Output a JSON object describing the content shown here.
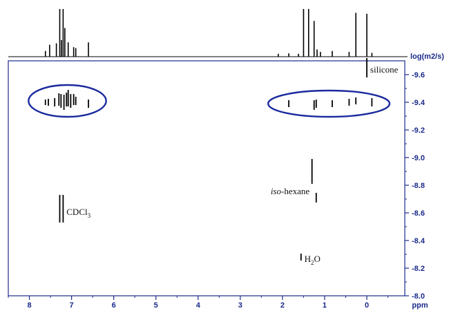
{
  "chart_data": {
    "type": "scatter",
    "subtype": "2D DOSY NMR spectrum",
    "title": "",
    "xlabel": "ppm",
    "ylabel": "log(m2/s)",
    "x_axis_reversed": true,
    "y_axis_reversed": true,
    "xlim": [
      8.5,
      -0.9
    ],
    "ylim": [
      -9.7,
      -8.0
    ],
    "x_ticks": [
      "8",
      "7",
      "6",
      "5",
      "4",
      "3",
      "2",
      "1",
      "0"
    ],
    "y_ticks": [
      "-9.6",
      "-9.4",
      "-9.2",
      "-9.0",
      "-8.8",
      "-8.6",
      "-8.4",
      "-8.2",
      "-8.0"
    ],
    "grid": false,
    "colors": {
      "axis": "#1a2a8a",
      "ellipse": "#1a2a9e",
      "signal": "#000000"
    },
    "projection_1d": [
      {
        "ppm": 7.62,
        "h": 0.12
      },
      {
        "ppm": 7.52,
        "h": 0.25
      },
      {
        "ppm": 7.36,
        "h": 0.28
      },
      {
        "ppm": 7.28,
        "h": 1.0
      },
      {
        "ppm": 7.24,
        "h": 0.35
      },
      {
        "ppm": 7.2,
        "h": 1.0
      },
      {
        "ppm": 7.16,
        "h": 0.6
      },
      {
        "ppm": 7.08,
        "h": 0.3
      },
      {
        "ppm": 6.95,
        "h": 0.2
      },
      {
        "ppm": 6.9,
        "h": 0.18
      },
      {
        "ppm": 6.6,
        "h": 0.3
      },
      {
        "ppm": 2.1,
        "h": 0.06
      },
      {
        "ppm": 1.85,
        "h": 0.07
      },
      {
        "ppm": 1.62,
        "h": 0.06
      },
      {
        "ppm": 1.5,
        "h": 1.0
      },
      {
        "ppm": 1.38,
        "h": 1.0
      },
      {
        "ppm": 1.25,
        "h": 0.75
      },
      {
        "ppm": 1.18,
        "h": 0.15
      },
      {
        "ppm": 1.1,
        "h": 0.1
      },
      {
        "ppm": 0.82,
        "h": 0.12
      },
      {
        "ppm": 0.42,
        "h": 0.1
      },
      {
        "ppm": 0.26,
        "h": 0.92
      },
      {
        "ppm": 0.0,
        "h": 0.9
      },
      {
        "ppm": -0.12,
        "h": 0.08
      }
    ],
    "series": [
      {
        "points": [
          {
            "ppm": 7.62,
            "log_d": -9.4,
            "len": 0.04
          },
          {
            "ppm": 7.55,
            "log_d": -9.4,
            "len": 0.05
          },
          {
            "ppm": 7.4,
            "log_d": -9.4,
            "len": 0.06
          },
          {
            "ppm": 7.3,
            "log_d": -9.42,
            "len": 0.09
          },
          {
            "ppm": 7.25,
            "log_d": -9.41,
            "len": 0.1
          },
          {
            "ppm": 7.18,
            "log_d": -9.4,
            "len": 0.11
          },
          {
            "ppm": 7.12,
            "log_d": -9.42,
            "len": 0.1
          },
          {
            "ppm": 7.08,
            "log_d": -9.43,
            "len": 0.12
          },
          {
            "ppm": 7.02,
            "log_d": -9.41,
            "len": 0.1
          },
          {
            "ppm": 6.95,
            "log_d": -9.42,
            "len": 0.08
          },
          {
            "ppm": 6.9,
            "log_d": -9.41,
            "len": 0.06
          },
          {
            "ppm": 6.6,
            "log_d": -9.39,
            "len": 0.06
          }
        ]
      },
      {
        "points": [
          {
            "ppm": 1.85,
            "log_d": -9.39,
            "len": 0.05
          },
          {
            "ppm": 1.25,
            "log_d": -9.38,
            "len": 0.07
          },
          {
            "ppm": 1.2,
            "log_d": -9.39,
            "len": 0.06
          },
          {
            "ppm": 0.82,
            "log_d": -9.39,
            "len": 0.05
          },
          {
            "ppm": 0.42,
            "log_d": -9.4,
            "len": 0.05
          },
          {
            "ppm": 0.26,
            "log_d": -9.41,
            "len": 0.05
          },
          {
            "ppm": -0.12,
            "log_d": -9.4,
            "len": 0.06
          }
        ]
      },
      {
        "points": [
          {
            "ppm": 1.3,
            "log_d": -8.9,
            "len": 0.18
          },
          {
            "ppm": 1.2,
            "log_d": -8.71,
            "len": 0.07
          }
        ]
      },
      {
        "points": [
          {
            "ppm": 7.28,
            "log_d": -8.63,
            "len": 0.2
          },
          {
            "ppm": 7.2,
            "log_d": -8.63,
            "len": 0.2
          }
        ]
      },
      {
        "points": [
          {
            "ppm": 1.56,
            "log_d": -8.28,
            "len": 0.05
          }
        ]
      },
      {
        "points": [
          {
            "ppm": 0.0,
            "log_d": -9.65,
            "len": 0.14
          }
        ]
      }
    ],
    "ellipses": [
      {
        "cx": 7.1,
        "cy": -9.41,
        "rx": 0.92,
        "ry": 0.115
      },
      {
        "cx": 0.9,
        "cy": -9.39,
        "rx": 1.44,
        "ry": 0.095
      }
    ],
    "annotations": [
      {
        "text": "silicone",
        "ppm": -0.08,
        "log_d": -9.64
      },
      {
        "text_italic": "iso",
        "text": "-hexane",
        "ppm": 2.28,
        "log_d": -8.76
      },
      {
        "text": "CDCl",
        "sub": "3",
        "ppm": 7.12,
        "log_d": -8.61
      },
      {
        "text": "H",
        "sub": "2",
        "text_after": "O",
        "ppm": 1.48,
        "log_d": -8.27
      }
    ]
  }
}
